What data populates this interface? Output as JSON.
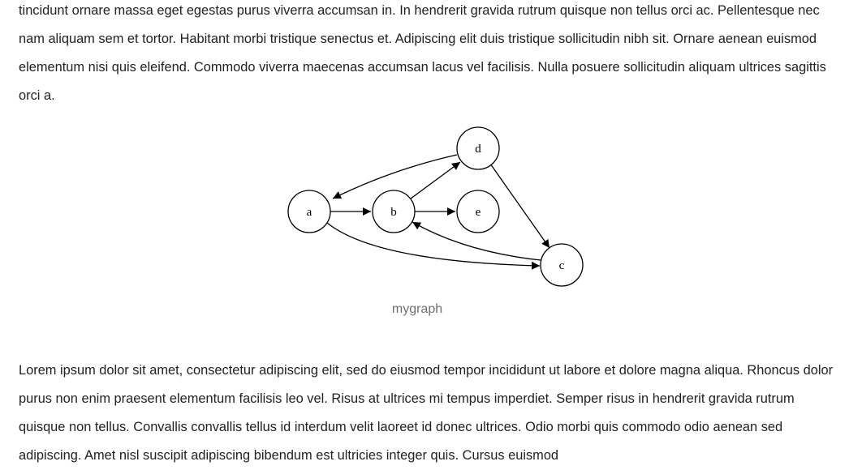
{
  "paragraphs_top": [
    "tincidunt ornare massa eget egestas purus viverra accumsan in. In hendrerit gravida rutrum quisque non tellus orci ac. Pellentesque nec nam aliquam sem et tortor. Habitant morbi tristique senectus et. Adipiscing elit duis tristique sollicitudin nibh sit. Ornare aenean euismod elementum nisi quis eleifend. Commodo viverra maecenas accumsan lacus vel facilisis. Nulla posuere sollicitudin aliquam ultrices sagittis orci a."
  ],
  "figure": {
    "caption": "mygraph",
    "nodes": [
      {
        "id": "a",
        "label": "a"
      },
      {
        "id": "b",
        "label": "b"
      },
      {
        "id": "d",
        "label": "d"
      },
      {
        "id": "e",
        "label": "e"
      },
      {
        "id": "c",
        "label": "c"
      }
    ],
    "edges": [
      {
        "from": "a",
        "to": "b"
      },
      {
        "from": "a",
        "to": "c"
      },
      {
        "from": "b",
        "to": "d"
      },
      {
        "from": "b",
        "to": "e"
      },
      {
        "from": "d",
        "to": "a"
      },
      {
        "from": "d",
        "to": "c"
      },
      {
        "from": "c",
        "to": "b"
      }
    ]
  },
  "paragraphs_bottom": [
    "Lorem ipsum dolor sit amet, consectetur adipiscing elit, sed do eiusmod tempor incididunt ut labore et dolore magna aliqua. Rhoncus dolor purus non enim praesent elementum facilisis leo vel. Risus at ultrices mi tempus imperdiet. Semper risus in hendrerit gravida rutrum quisque non tellus. Convallis convallis tellus id interdum velit laoreet id donec ultrices. Odio morbi quis commodo odio aenean sed adipiscing. Amet nisl suscipit adipiscing bibendum est ultricies integer quis. Cursus euismod"
  ]
}
